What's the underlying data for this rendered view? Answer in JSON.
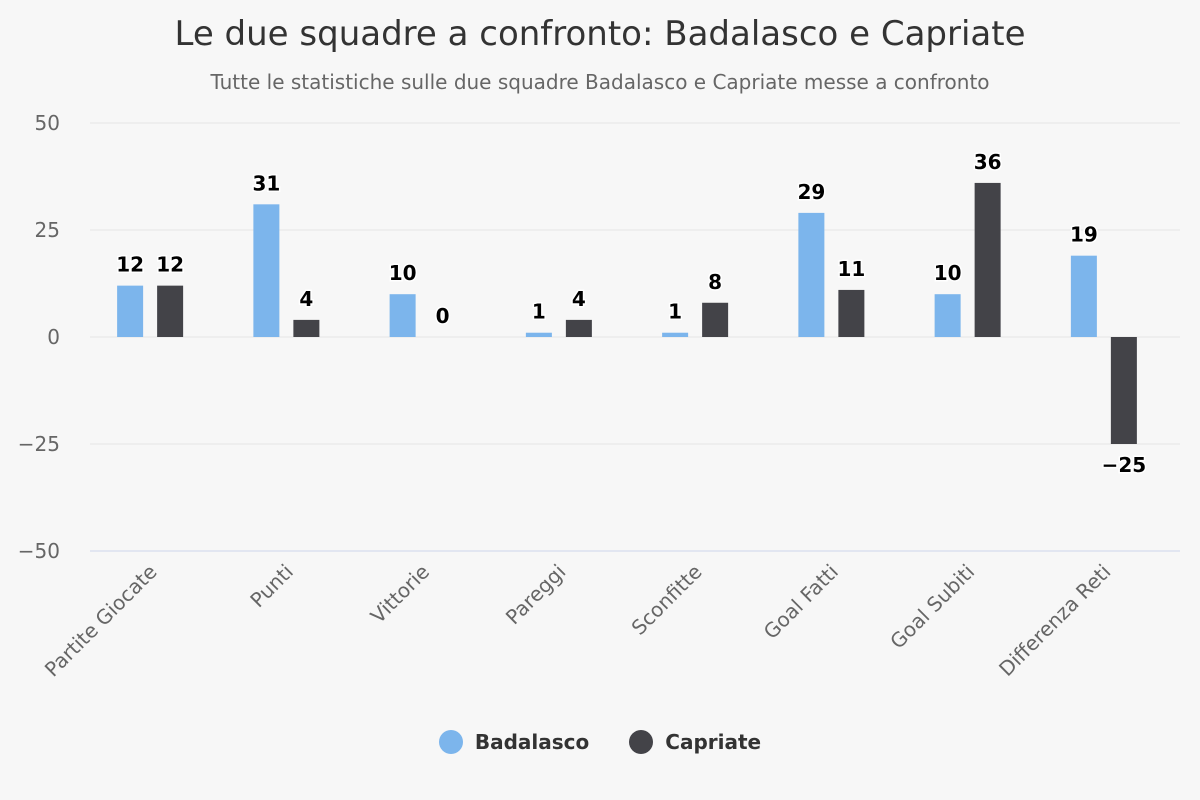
{
  "header": {
    "title": "Le due squadre a confronto: Badalasco e Capriate",
    "subtitle": "Tutte le statistiche sulle due squadre Badalasco e Capriate messe a confronto"
  },
  "colors": {
    "background": "#f7f7f7",
    "grid": "#e6e6e6",
    "zero_line": "#cccccc",
    "axis_line": "#ccd6eb",
    "tick_text": "#666666",
    "data_label": "#000000"
  },
  "chart_data": {
    "type": "bar",
    "title": "Le due squadre a confronto: Badalasco e Capriate",
    "subtitle": "Tutte le statistiche sulle due squadre Badalasco e Capriate messe a confronto",
    "categories": [
      "Partite Giocate",
      "Punti",
      "Vittorie",
      "Pareggi",
      "Sconfitte",
      "Goal Fatti",
      "Goal Subiti",
      "Differenza Reti"
    ],
    "series": [
      {
        "name": "Badalasco",
        "color": "#7cb5ec",
        "values": [
          12,
          31,
          10,
          1,
          1,
          29,
          10,
          19
        ]
      },
      {
        "name": "Capriate",
        "color": "#434348",
        "values": [
          12,
          4,
          0,
          4,
          8,
          11,
          36,
          -25
        ]
      }
    ],
    "ylim": [
      -50,
      50
    ],
    "yticks": [
      50,
      25,
      0,
      -25,
      -50
    ],
    "ytick_labels": [
      "50",
      "25",
      "0",
      "−25",
      "−50"
    ],
    "grid": true,
    "legend": "bottom-center"
  }
}
